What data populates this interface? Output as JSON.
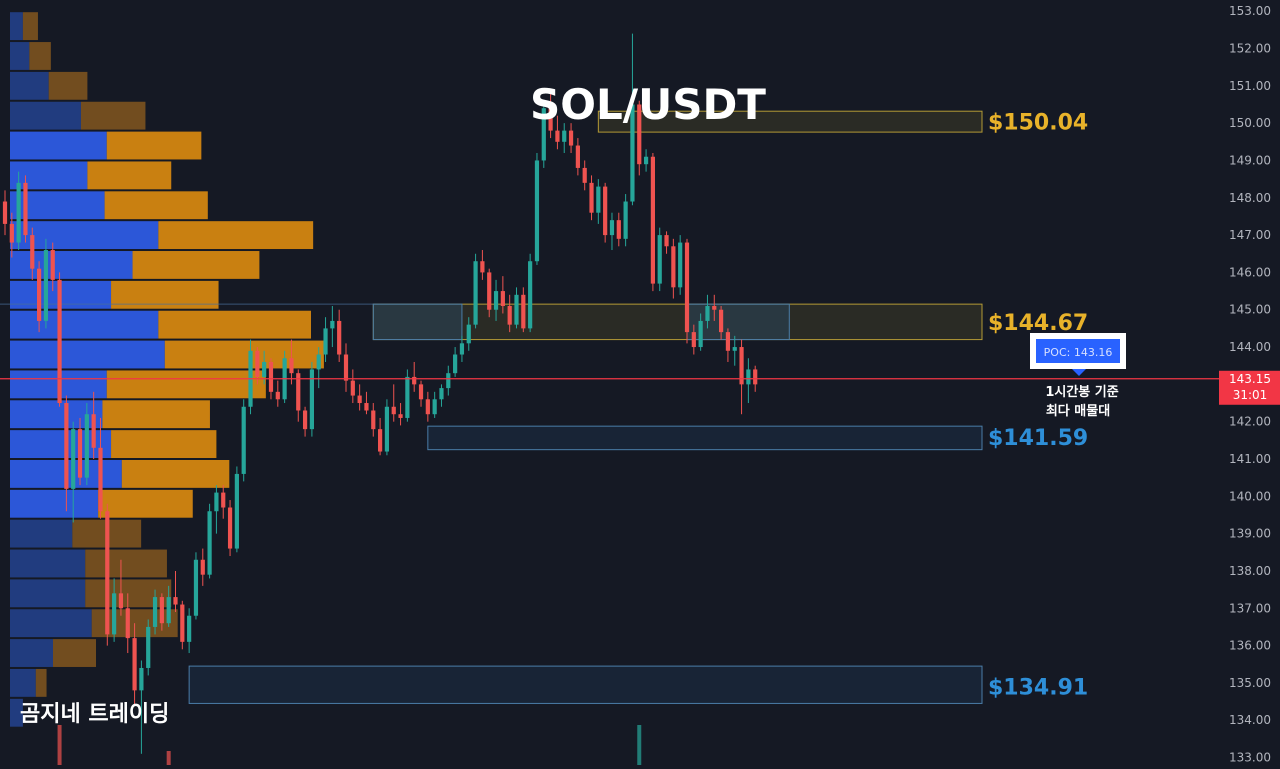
{
  "chart_data": {
    "type": "candlestick",
    "title": "SOL/USDT",
    "y_axis": {
      "ylim": [
        132.8,
        153.3
      ],
      "ticks": [
        "153.00",
        "152.00",
        "151.00",
        "150.00",
        "149.00",
        "148.00",
        "147.00",
        "146.00",
        "145.00",
        "144.00",
        "143.00",
        "142.00",
        "141.00",
        "140.00",
        "139.00",
        "138.00",
        "137.00",
        "136.00",
        "135.00",
        "134.00",
        "133.00"
      ]
    },
    "current_price": {
      "value": 143.15,
      "label": "143.15",
      "countdown": "31:01"
    },
    "poc": {
      "value": 143.16,
      "label": "POC: 143.16",
      "note_line1": "1시간봉 기준",
      "note_line2": "최다 매물대"
    },
    "levels": [
      {
        "label": "$150.04",
        "value": 150.04,
        "zone": [
          149.76,
          150.32
        ],
        "color": "#e8b22a",
        "zone_start_index": 87
      },
      {
        "label": "$144.67",
        "value": 144.67,
        "zone": [
          144.2,
          145.15
        ],
        "color": "#e8b22a",
        "zone_start_index": 54
      },
      {
        "label": "$141.59",
        "value": 141.59,
        "zone": [
          141.25,
          141.88
        ],
        "color": "#2e8fd8",
        "zone_start_index": 62
      },
      {
        "label": "$134.91",
        "value": 134.91,
        "zone": [
          134.45,
          135.45
        ],
        "color": "#2e8fd8",
        "zone_start_index": 27
      }
    ],
    "volume_profile": {
      "price_top": 153.0,
      "bin_size": 0.8,
      "bins": [
        {
          "up": 0.6,
          "down": 0.7
        },
        {
          "up": 0.9,
          "down": 1.0
        },
        {
          "up": 1.8,
          "down": 1.8
        },
        {
          "up": 3.3,
          "down": 3.0
        },
        {
          "up": 4.5,
          "down": 4.4
        },
        {
          "up": 3.6,
          "down": 3.9
        },
        {
          "up": 4.4,
          "down": 4.8
        },
        {
          "up": 6.9,
          "down": 7.2
        },
        {
          "up": 5.7,
          "down": 5.9
        },
        {
          "up": 4.7,
          "down": 5.0
        },
        {
          "up": 6.9,
          "down": 7.1
        },
        {
          "up": 7.2,
          "down": 7.4
        },
        {
          "up": 4.5,
          "down": 7.4
        },
        {
          "up": 4.3,
          "down": 5.0
        },
        {
          "up": 4.7,
          "down": 4.9
        },
        {
          "up": 5.2,
          "down": 5.0
        },
        {
          "up": 4.1,
          "down": 4.4
        },
        {
          "up": 2.9,
          "down": 3.2
        },
        {
          "up": 3.5,
          "down": 3.8
        },
        {
          "up": 3.5,
          "down": 4.0
        },
        {
          "up": 3.8,
          "down": 4.0
        },
        {
          "up": 2.0,
          "down": 2.0
        },
        {
          "up": 1.2,
          "down": 0.5
        },
        {
          "up": 0.6,
          "down": 0.0
        }
      ]
    },
    "candles": [
      [
        147.9,
        148.2,
        147.0,
        147.3
      ],
      [
        147.3,
        147.6,
        146.4,
        146.8
      ],
      [
        146.8,
        148.7,
        146.6,
        148.4
      ],
      [
        148.4,
        148.6,
        146.8,
        147.0
      ],
      [
        147.0,
        147.2,
        145.8,
        146.1
      ],
      [
        146.1,
        146.3,
        144.4,
        144.7
      ],
      [
        144.7,
        146.9,
        144.5,
        146.6
      ],
      [
        146.6,
        146.8,
        145.5,
        145.8
      ],
      [
        145.8,
        146.0,
        142.4,
        142.5
      ],
      [
        142.5,
        142.7,
        139.6,
        140.2
      ],
      [
        140.2,
        142.0,
        139.3,
        141.8
      ],
      [
        141.8,
        142.1,
        140.3,
        140.5
      ],
      [
        140.5,
        142.5,
        140.3,
        142.2
      ],
      [
        142.2,
        142.8,
        141.0,
        141.3
      ],
      [
        141.3,
        142.1,
        139.4,
        139.6
      ],
      [
        139.6,
        139.8,
        136.0,
        136.3
      ],
      [
        136.3,
        137.8,
        136.1,
        137.4
      ],
      [
        137.4,
        138.3,
        136.8,
        137.0
      ],
      [
        137.0,
        137.4,
        135.8,
        136.2
      ],
      [
        136.2,
        136.6,
        134.4,
        134.8
      ],
      [
        134.8,
        135.6,
        133.1,
        135.4
      ],
      [
        135.4,
        136.7,
        135.2,
        136.5
      ],
      [
        136.5,
        137.5,
        136.3,
        137.3
      ],
      [
        137.3,
        137.4,
        136.4,
        136.6
      ],
      [
        136.6,
        137.6,
        136.5,
        137.3
      ],
      [
        137.3,
        138.0,
        136.9,
        137.1
      ],
      [
        137.1,
        137.2,
        135.9,
        136.1
      ],
      [
        136.1,
        137.0,
        135.8,
        136.8
      ],
      [
        136.8,
        138.5,
        136.7,
        138.3
      ],
      [
        138.3,
        138.6,
        137.6,
        137.9
      ],
      [
        137.9,
        139.8,
        137.8,
        139.6
      ],
      [
        139.6,
        140.3,
        139.0,
        140.1
      ],
      [
        140.1,
        140.3,
        139.4,
        139.7
      ],
      [
        139.7,
        139.9,
        138.4,
        138.6
      ],
      [
        138.6,
        140.8,
        138.5,
        140.6
      ],
      [
        140.6,
        142.6,
        140.4,
        142.4
      ],
      [
        142.4,
        144.2,
        142.2,
        143.9
      ],
      [
        143.9,
        144.0,
        143.0,
        143.2
      ],
      [
        143.2,
        143.9,
        143.0,
        143.6
      ],
      [
        143.6,
        143.7,
        142.6,
        142.8
      ],
      [
        142.8,
        143.1,
        142.4,
        142.6
      ],
      [
        142.6,
        143.9,
        142.5,
        143.7
      ],
      [
        143.7,
        144.2,
        143.0,
        143.3
      ],
      [
        143.3,
        143.4,
        142.0,
        142.3
      ],
      [
        142.3,
        142.4,
        141.6,
        141.8
      ],
      [
        141.8,
        143.6,
        141.6,
        143.4
      ],
      [
        143.4,
        144.0,
        142.9,
        143.8
      ],
      [
        143.8,
        144.8,
        143.6,
        144.5
      ],
      [
        144.5,
        145.1,
        144.0,
        144.7
      ],
      [
        144.7,
        145.0,
        143.6,
        143.8
      ],
      [
        143.8,
        144.1,
        142.8,
        143.1
      ],
      [
        143.1,
        143.4,
        142.5,
        142.7
      ],
      [
        142.7,
        143.0,
        142.3,
        142.5
      ],
      [
        142.5,
        142.8,
        142.2,
        142.3
      ],
      [
        142.3,
        142.5,
        141.6,
        141.8
      ],
      [
        141.8,
        142.1,
        141.1,
        141.2
      ],
      [
        141.2,
        142.6,
        141.1,
        142.4
      ],
      [
        142.4,
        143.0,
        142.0,
        142.2
      ],
      [
        142.2,
        142.5,
        141.9,
        142.1
      ],
      [
        142.1,
        143.4,
        142.0,
        143.2
      ],
      [
        143.2,
        143.6,
        142.8,
        143.0
      ],
      [
        143.0,
        143.1,
        142.4,
        142.6
      ],
      [
        142.6,
        142.8,
        142.0,
        142.2
      ],
      [
        142.2,
        142.8,
        142.1,
        142.6
      ],
      [
        142.6,
        143.0,
        142.4,
        142.9
      ],
      [
        142.9,
        143.5,
        142.7,
        143.3
      ],
      [
        143.3,
        144.0,
        143.2,
        143.8
      ],
      [
        143.8,
        144.3,
        143.6,
        144.1
      ],
      [
        144.1,
        144.8,
        143.9,
        144.6
      ],
      [
        144.6,
        146.5,
        144.5,
        146.3
      ],
      [
        146.3,
        146.6,
        145.8,
        146.0
      ],
      [
        146.0,
        146.1,
        144.8,
        145.0
      ],
      [
        145.0,
        145.8,
        144.7,
        145.5
      ],
      [
        145.5,
        145.9,
        144.9,
        145.1
      ],
      [
        145.1,
        145.4,
        144.4,
        144.6
      ],
      [
        144.6,
        145.6,
        144.5,
        145.4
      ],
      [
        145.4,
        145.6,
        144.4,
        144.5
      ],
      [
        144.5,
        146.5,
        144.4,
        146.3
      ],
      [
        146.3,
        149.2,
        146.2,
        149.0
      ],
      [
        149.0,
        150.5,
        148.8,
        150.4
      ],
      [
        150.4,
        150.8,
        149.6,
        149.8
      ],
      [
        149.8,
        150.2,
        149.3,
        149.5
      ],
      [
        149.5,
        150.0,
        149.2,
        149.8
      ],
      [
        149.8,
        150.0,
        149.2,
        149.4
      ],
      [
        149.4,
        149.6,
        148.6,
        148.8
      ],
      [
        148.8,
        149.0,
        148.2,
        148.4
      ],
      [
        148.4,
        148.6,
        147.4,
        147.6
      ],
      [
        147.6,
        148.5,
        147.3,
        148.3
      ],
      [
        148.3,
        148.4,
        146.8,
        147.0
      ],
      [
        147.0,
        147.6,
        146.6,
        147.4
      ],
      [
        147.4,
        147.6,
        146.7,
        146.9
      ],
      [
        146.9,
        148.1,
        146.7,
        147.9
      ],
      [
        147.9,
        152.4,
        147.8,
        150.5
      ],
      [
        150.5,
        150.6,
        148.6,
        148.9
      ],
      [
        148.9,
        149.3,
        148.7,
        149.1
      ],
      [
        149.1,
        149.2,
        145.5,
        145.7
      ],
      [
        145.7,
        147.2,
        145.5,
        147.0
      ],
      [
        147.0,
        147.1,
        146.5,
        146.7
      ],
      [
        146.7,
        146.9,
        145.3,
        145.6
      ],
      [
        145.6,
        147.0,
        145.4,
        146.8
      ],
      [
        146.8,
        146.9,
        144.1,
        144.4
      ],
      [
        144.4,
        144.6,
        143.8,
        144.0
      ],
      [
        144.0,
        144.9,
        143.9,
        144.7
      ],
      [
        144.7,
        145.4,
        144.5,
        145.1
      ],
      [
        145.1,
        145.4,
        144.7,
        145.0
      ],
      [
        145.0,
        145.1,
        144.2,
        144.4
      ],
      [
        144.4,
        144.5,
        143.6,
        143.9
      ],
      [
        143.9,
        144.3,
        143.5,
        144.0
      ],
      [
        144.0,
        144.2,
        142.2,
        143.0
      ],
      [
        143.0,
        143.7,
        142.5,
        143.4
      ],
      [
        143.4,
        143.5,
        142.8,
        143.0
      ]
    ],
    "bottom_volume": [
      {
        "index": 8,
        "value": 1.0,
        "dir": "down"
      },
      {
        "index": 24,
        "value": 0.35,
        "dir": "down"
      },
      {
        "index": 93,
        "value": 1.0,
        "dir": "up"
      }
    ]
  },
  "watermark": "곰지네 트레이딩"
}
